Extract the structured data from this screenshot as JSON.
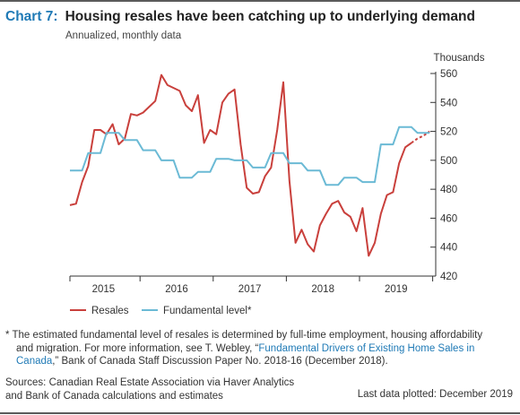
{
  "header": {
    "chart_number": "Chart 7:",
    "title": "Housing resales have been catching up to underlying demand",
    "subtitle": "Annualized, monthly data"
  },
  "footnote": {
    "marker": "*",
    "line1": "The estimated fundamental level of resales is determined by full-time employment, housing affordability",
    "line2_pre": "and migration. For more information, see T. Webley, “",
    "link_a": "Fundamental Drivers of Existing Home Sales in",
    "link_b": "Canada",
    "line3_post": ",” Bank of Canada Staff Discussion Paper No. 2018-16 (December 2018)."
  },
  "sources": {
    "line1": "Sources: Canadian Real Estate Association via Haver Analytics",
    "line2": "and Bank of Canada calculations and estimates"
  },
  "last_plotted": "Last data plotted: December 2019",
  "chart_data": {
    "type": "line",
    "ylabel": "Thousands",
    "ylim": [
      420,
      560
    ],
    "yticks": [
      420,
      440,
      460,
      480,
      500,
      520,
      540,
      560
    ],
    "y_axis_side": "right",
    "xlim": [
      0,
      60
    ],
    "xticks": [
      {
        "label": "2015",
        "at": 5.5
      },
      {
        "label": "2016",
        "at": 17.5
      },
      {
        "label": "2017",
        "at": 29.5
      },
      {
        "label": "2018",
        "at": 41.5
      },
      {
        "label": "2019",
        "at": 53.5
      }
    ],
    "grid": false,
    "legend_placement": "bottom-left",
    "colors": {
      "resales": "#c9403c",
      "fundamental": "#6bbad5"
    },
    "series": [
      {
        "name": "Resales",
        "key": "resales",
        "x": [
          0,
          1,
          2,
          3,
          4,
          5,
          6,
          7,
          8,
          9,
          10,
          11,
          12,
          13,
          14,
          15,
          16,
          17,
          18,
          19,
          20,
          21,
          22,
          23,
          24,
          25,
          26,
          27,
          28,
          29,
          30,
          31,
          32,
          33,
          34,
          35,
          36,
          37,
          38,
          39,
          40,
          41,
          42,
          43,
          44,
          45,
          46,
          47,
          48,
          49,
          50,
          51,
          52,
          53,
          54,
          55,
          56
        ],
        "values": [
          469,
          470,
          485,
          496,
          521,
          521,
          518,
          525,
          511,
          515,
          532,
          531,
          533,
          537,
          541,
          559,
          552,
          550,
          548,
          538,
          534,
          545,
          512,
          521,
          518,
          540,
          546,
          549,
          511,
          481,
          477,
          478,
          489,
          495,
          521,
          554,
          486,
          443,
          452,
          442,
          437,
          455,
          463,
          470,
          472,
          464,
          461,
          451,
          467,
          434,
          443,
          463,
          476,
          478,
          498,
          509,
          512
        ],
        "segment": "solid"
      },
      {
        "name": "",
        "key": "resales_estimate",
        "x": [
          56,
          57,
          58,
          59
        ],
        "values": [
          512,
          515,
          517,
          520
        ],
        "segment": "dashed"
      },
      {
        "name": "Fundamental level*",
        "key": "fundamental",
        "x": [
          0,
          1,
          2,
          3,
          4,
          5,
          6,
          7,
          8,
          9,
          10,
          11,
          12,
          13,
          14,
          15,
          16,
          17,
          18,
          19,
          20,
          21,
          22,
          23,
          24,
          25,
          26,
          27,
          28,
          29,
          30,
          31,
          32,
          33,
          34,
          35,
          36,
          37,
          38,
          39,
          40,
          41,
          42,
          43,
          44,
          45,
          46,
          47,
          48,
          49,
          50,
          51,
          52,
          53,
          54,
          55,
          56,
          57,
          58,
          59
        ],
        "values": [
          493,
          493,
          493,
          505,
          505,
          505,
          519,
          519,
          519,
          514,
          514,
          514,
          507,
          507,
          507,
          500,
          500,
          500,
          488,
          488,
          488,
          492,
          492,
          492,
          501,
          501,
          501,
          500,
          500,
          500,
          495,
          495,
          495,
          505,
          505,
          505,
          498,
          498,
          498,
          493,
          493,
          493,
          483,
          483,
          483,
          488,
          488,
          488,
          485,
          485,
          485,
          511,
          511,
          511,
          523,
          523,
          523,
          519,
          519,
          519
        ]
      }
    ]
  }
}
